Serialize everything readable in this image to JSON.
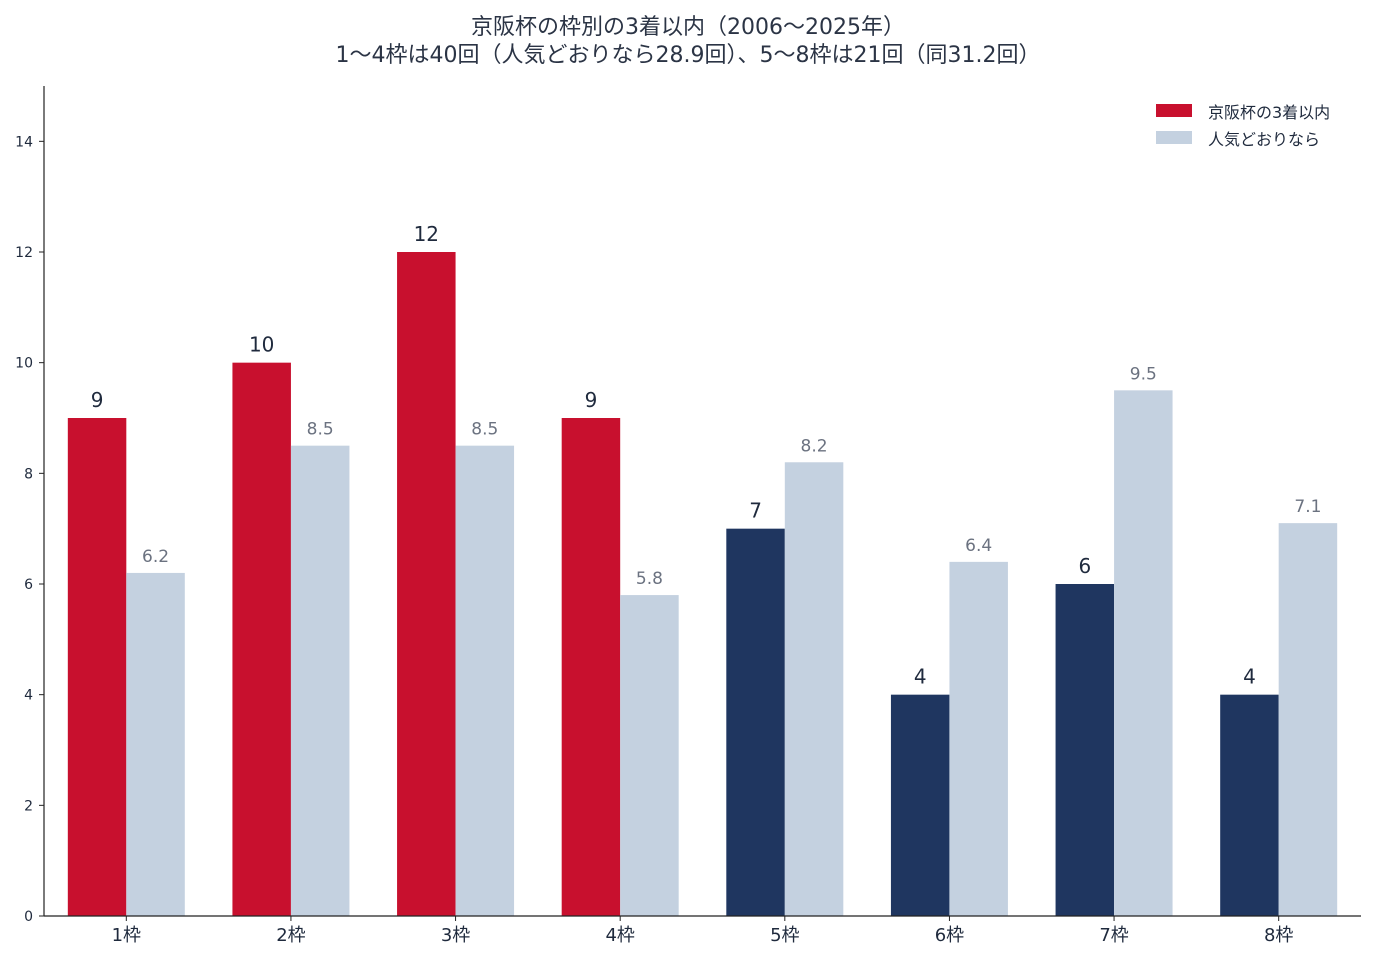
{
  "title": {
    "line1": "京阪杯の枠別の3着以内（2006〜2025年）",
    "line2": "1〜4枠は40回（人気どおりなら28.9回）、5〜8枠は21回（同31.2回）"
  },
  "legend": {
    "actual_label": "京阪杯の3着以内",
    "expected_label": "人気どおりなら"
  },
  "colors": {
    "inner": "#c8102e",
    "outer": "#1f3660",
    "expected": "#c4d1e0",
    "expected_label": "#6b7280",
    "axis": "#222222"
  },
  "chart_data": {
    "type": "bar",
    "title": "京阪杯の枠別の3着以内（2006〜2025年）",
    "subtitle": "1〜4枠は40回（人気どおりなら28.9回）、5〜8枠は21回（同31.2回）",
    "categories": [
      "1枠",
      "2枠",
      "3枠",
      "4枠",
      "5枠",
      "6枠",
      "7枠",
      "8枠"
    ],
    "series": [
      {
        "name": "京阪杯の3着以内",
        "values": [
          9,
          10,
          12,
          9,
          7,
          4,
          6,
          4
        ]
      },
      {
        "name": "人気どおりなら",
        "values": [
          6.2,
          8.5,
          8.5,
          5.8,
          8.2,
          6.4,
          9.5,
          7.1
        ]
      }
    ],
    "ylim": [
      0,
      15
    ],
    "yticks": [
      0,
      2,
      4,
      6,
      8,
      10,
      12,
      14
    ],
    "xlabel": "",
    "ylabel": "",
    "legend_position": "top-right",
    "grid": false
  }
}
